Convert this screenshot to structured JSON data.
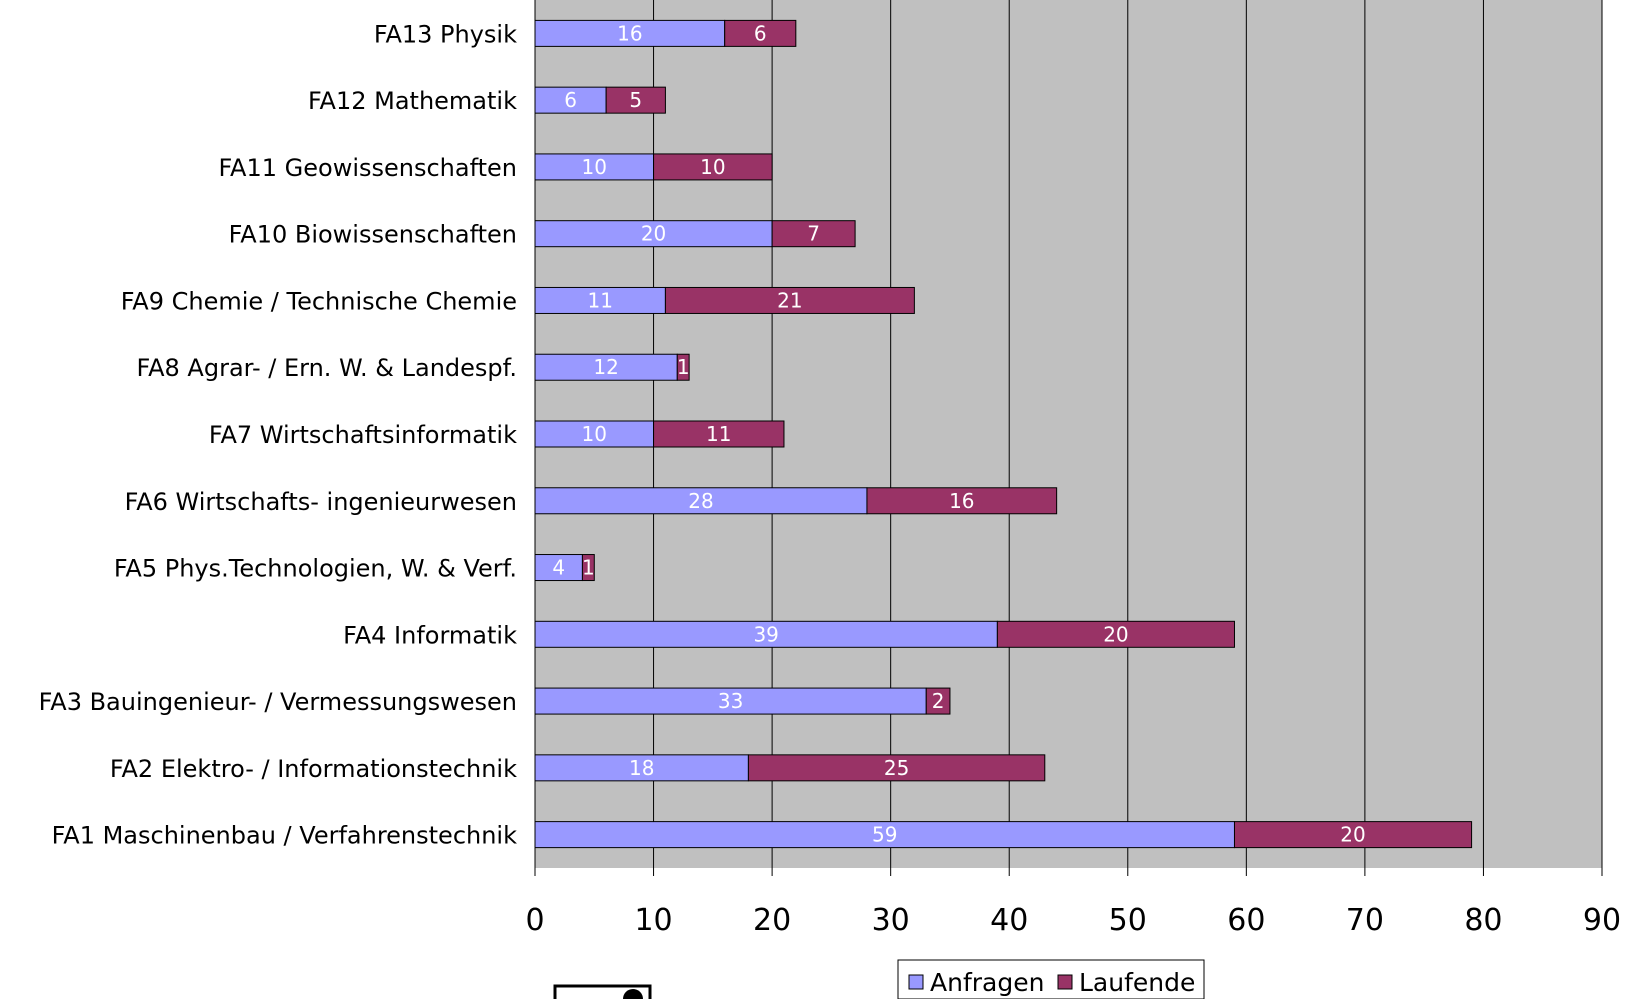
{
  "chart_data": {
    "type": "bar",
    "orientation": "horizontal",
    "stacked": true,
    "categories": [
      "FA13 Physik",
      "FA12 Mathematik",
      "FA11 Geowissenschaften",
      "FA10 Biowissenschaften",
      "FA9 Chemie / Technische Chemie",
      "FA8 Agrar- / Ern. W. & Landespf.",
      "FA7 Wirtschaftsinformatik",
      "FA6 Wirtschafts- ingenieurwesen",
      "FA5 Phys.Technologien, W. & Verf.",
      "FA4 Informatik",
      "FA3 Bauingenieur- / Vermessungswesen",
      "FA2 Elektro- / Informationstechnik",
      "FA1 Maschinenbau / Verfahrenstechnik"
    ],
    "series": [
      {
        "name": "Anfragen",
        "color": "#9999ff",
        "values": [
          16,
          6,
          10,
          20,
          11,
          12,
          10,
          28,
          4,
          39,
          33,
          18,
          59
        ]
      },
      {
        "name": "Laufende",
        "color": "#993366",
        "values": [
          6,
          5,
          10,
          7,
          21,
          1,
          11,
          16,
          1,
          20,
          2,
          25,
          20
        ]
      }
    ],
    "xlim": [
      0,
      90
    ],
    "xticks": [
      "0",
      "10",
      "20",
      "30",
      "40",
      "50",
      "60",
      "70",
      "80",
      "90"
    ],
    "grid": true,
    "plot_background": "#c0c0c0",
    "legend_position": "bottom"
  }
}
